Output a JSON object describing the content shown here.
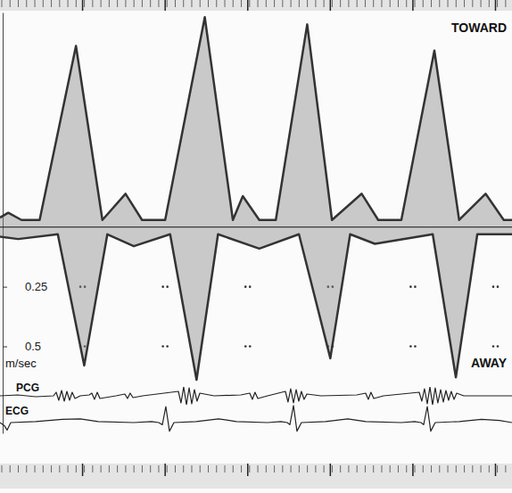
{
  "chart_data": [
    {
      "type": "area",
      "xlim": [
        0,
        3.1
      ],
      "xticks": [
        0.5,
        1,
        1.5,
        2,
        2.5,
        3
      ],
      "ylim": [
        0.7,
        -0.9
      ],
      "yticks": [
        0.25,
        0.5
      ],
      "ylabel": "m/sec",
      "grid": true,
      "tick_labels": "y",
      "series": [
        {
          "name": "TOWARD",
          "color": "#333333",
          "x": [
            0,
            0.05,
            0.13,
            0.24,
            0.46,
            0.62,
            0.76,
            0.86,
            1.0,
            1.24,
            1.41,
            1.47,
            1.57,
            1.67,
            1.86,
            2.01,
            2.19,
            2.29,
            2.43,
            2.63,
            2.78,
            2.94,
            3.05,
            3.1
          ],
          "values": [
            -0.04,
            -0.06,
            -0.03,
            -0.03,
            -0.76,
            -0.03,
            -0.14,
            -0.03,
            -0.03,
            -0.88,
            -0.03,
            -0.13,
            -0.03,
            -0.03,
            -0.85,
            -0.03,
            -0.14,
            -0.03,
            -0.03,
            -0.74,
            -0.03,
            -0.14,
            -0.03,
            -0.03
          ]
        },
        {
          "name": "AWAY",
          "color": "#333333",
          "x": [
            0,
            0.11,
            0.35,
            0.51,
            0.65,
            0.81,
            1.03,
            1.19,
            1.32,
            1.57,
            1.81,
            2.0,
            2.12,
            2.27,
            2.62,
            2.76,
            2.89,
            3.1
          ],
          "values": [
            0.04,
            0.05,
            0.03,
            0.58,
            0.03,
            0.08,
            0.03,
            0.64,
            0.03,
            0.09,
            0.03,
            0.55,
            0.03,
            0.07,
            0.03,
            0.63,
            0.03,
            0.03
          ]
        }
      ]
    },
    {
      "type": "line",
      "title": "PCG",
      "xlim": [
        0,
        3.1
      ],
      "ylim": [
        -1,
        1
      ],
      "tick_labels": false,
      "series": [
        {
          "color": "#222222",
          "x": [
            0,
            0.108,
            0.216,
            0.324,
            0.34,
            0.356,
            0.373,
            0.389,
            0.405,
            0.421,
            0.437,
            0.454,
            0.486,
            0.54,
            0.556,
            0.572,
            0.589,
            0.605,
            0.702,
            0.756,
            0.772,
            0.788,
            0.805,
            0.864,
            1.08,
            1.096,
            1.112,
            1.129,
            1.145,
            1.161,
            1.177,
            1.193,
            1.21,
            1.296,
            1.458,
            1.512,
            1.528,
            1.544,
            1.561,
            1.62,
            1.728,
            1.744,
            1.76,
            1.777,
            1.793,
            1.809,
            1.825,
            1.841,
            1.858,
            1.944,
            2.16,
            2.214,
            2.23,
            2.246,
            2.263,
            2.322,
            2.538,
            2.554,
            2.57,
            2.587,
            2.603,
            2.619,
            2.635,
            2.651,
            2.668,
            2.684,
            2.7,
            2.716,
            2.732,
            2.749,
            2.765,
            2.808,
            3.1
          ],
          "values": [
            0,
            0.1,
            -0.1,
            0,
            0.4,
            -0.5,
            0.6,
            -0.6,
            0.5,
            -0.5,
            0.4,
            -0.3,
            0,
            0.1,
            0.3,
            -0.4,
            0.4,
            -0.3,
            0,
            0.2,
            -0.3,
            0.3,
            -0.2,
            0,
            0.5,
            -0.8,
            1,
            -1,
            0.9,
            -0.9,
            0.7,
            -0.6,
            0.3,
            0,
            0.1,
            0.3,
            -0.4,
            0.4,
            -0.3,
            0,
            0.5,
            -0.7,
            0.8,
            -0.8,
            0.7,
            -0.6,
            0.5,
            -0.4,
            0.2,
            0,
            0.1,
            0.3,
            -0.4,
            0.4,
            -0.3,
            0,
            0.4,
            -0.6,
            0.8,
            -0.9,
            1,
            -1,
            0.9,
            -0.8,
            0.7,
            -0.7,
            0.6,
            -0.5,
            0.5,
            -0.4,
            0.3,
            0,
            0
          ]
        }
      ]
    },
    {
      "type": "line",
      "title": "ECG",
      "xlim": [
        0,
        3.1
      ],
      "ylim": [
        -1,
        2
      ],
      "tick_labels": false,
      "series": [
        {
          "color": "#222222",
          "x": [
            0,
            0.027,
            0.043,
            0.065,
            0.216,
            0.378,
            0.486,
            0.594,
            0.81,
            0.918,
            0.961,
            0.983,
            1.004,
            1.026,
            1.053,
            1.188,
            1.323,
            1.431,
            1.62,
            1.701,
            1.739,
            1.755,
            1.777,
            1.798,
            1.825,
            1.971,
            2.106,
            2.214,
            2.43,
            2.511,
            2.549,
            2.565,
            2.587,
            2.608,
            2.635,
            2.781,
            2.916,
            3.024,
            3.1
          ],
          "values": [
            0,
            -0.3,
            -0.7,
            0,
            0.1,
            0.3,
            0.35,
            0.1,
            0,
            0.1,
            0,
            -0.2,
            1.5,
            -0.8,
            0,
            0.1,
            0.35,
            0.1,
            0,
            0.1,
            0,
            -0.2,
            1.6,
            -0.8,
            0,
            0.1,
            0.35,
            0.1,
            0,
            0.1,
            0,
            -0.2,
            1.5,
            -0.8,
            0,
            0.1,
            0.3,
            0.2,
            0
          ]
        }
      ]
    }
  ]
}
